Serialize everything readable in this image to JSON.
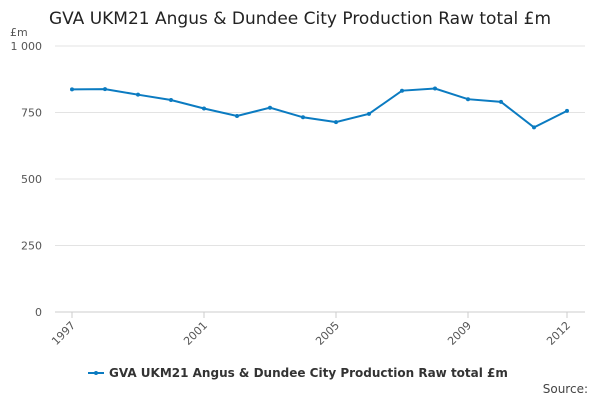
{
  "chart_data": {
    "type": "line",
    "title": "GVA UKM21 Angus & Dundee City Production Raw total £m",
    "y_label": "£m",
    "x": [
      1997,
      1998,
      1999,
      2000,
      2001,
      2002,
      2003,
      2004,
      2005,
      2006,
      2007,
      2008,
      2009,
      2010,
      2011,
      2012
    ],
    "series": [
      {
        "name": "GVA UKM21 Angus & Dundee City Production Raw total £m",
        "color": "#0b7bc1",
        "values": [
          837,
          838,
          817,
          797,
          765,
          737,
          768,
          732,
          714,
          745,
          832,
          840,
          800,
          790,
          694,
          756
        ]
      }
    ],
    "xlim": [
      1997,
      2012
    ],
    "xticks": [
      1997,
      2001,
      2005,
      2009,
      2012
    ],
    "ylim": [
      0,
      1000
    ],
    "yticks": [
      0,
      250,
      500,
      750,
      {
        "value": 1000,
        "label": "1 000"
      }
    ],
    "grid": true,
    "legend": "bottom",
    "source": "Source:"
  }
}
